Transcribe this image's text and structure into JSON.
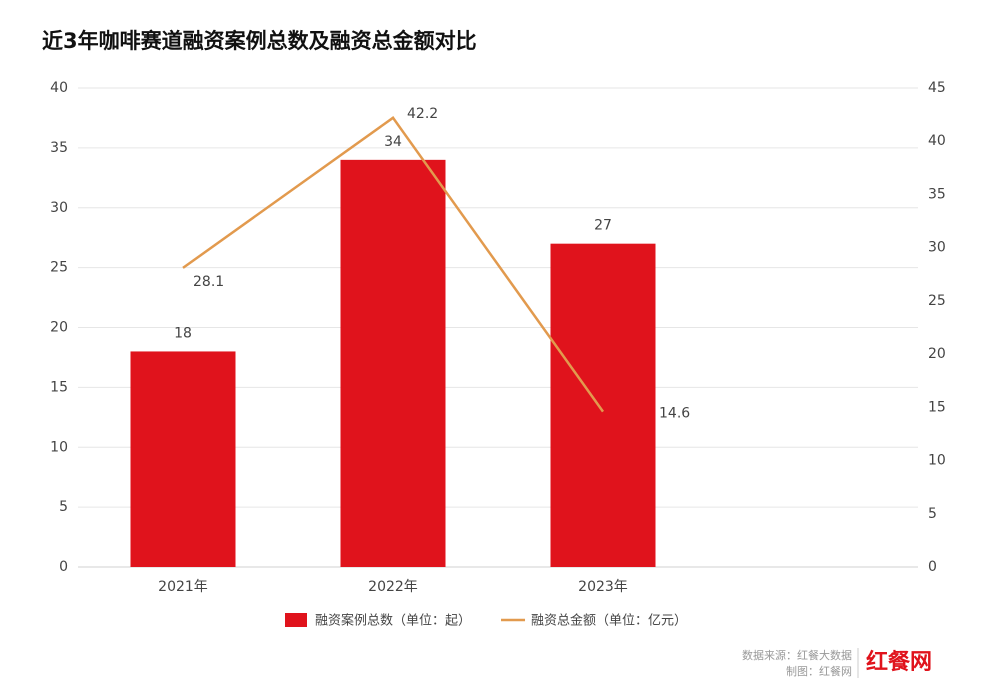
{
  "chart_data": {
    "type": "bar",
    "title": "近3年咖啡赛道融资案例总数及融资总金额对比",
    "categories": [
      "2021年",
      "2022年",
      "2023年",
      null
    ],
    "series": [
      {
        "name": "融资案例总数（单位：起）",
        "type": "bar",
        "color": "#e0131c",
        "values": [
          18,
          34,
          27,
          null
        ]
      },
      {
        "name": "融资总金额（单位：亿元）",
        "type": "line",
        "color": "#e29a4e",
        "axis": "y2",
        "values": [
          28.1,
          42.2,
          14.6,
          null
        ]
      }
    ],
    "ylim": [
      0,
      40
    ],
    "yticks": [
      0,
      5,
      10,
      15,
      20,
      25,
      30,
      35,
      40
    ],
    "y2lim": [
      0,
      45
    ],
    "y2ticks": [
      0,
      5,
      10,
      15,
      20,
      25,
      30,
      35,
      40,
      45
    ],
    "grid": true,
    "legend": "bottom",
    "source": "数据来源：红餐大数据",
    "credit": "制图：红餐网",
    "logo": "红餐网"
  }
}
